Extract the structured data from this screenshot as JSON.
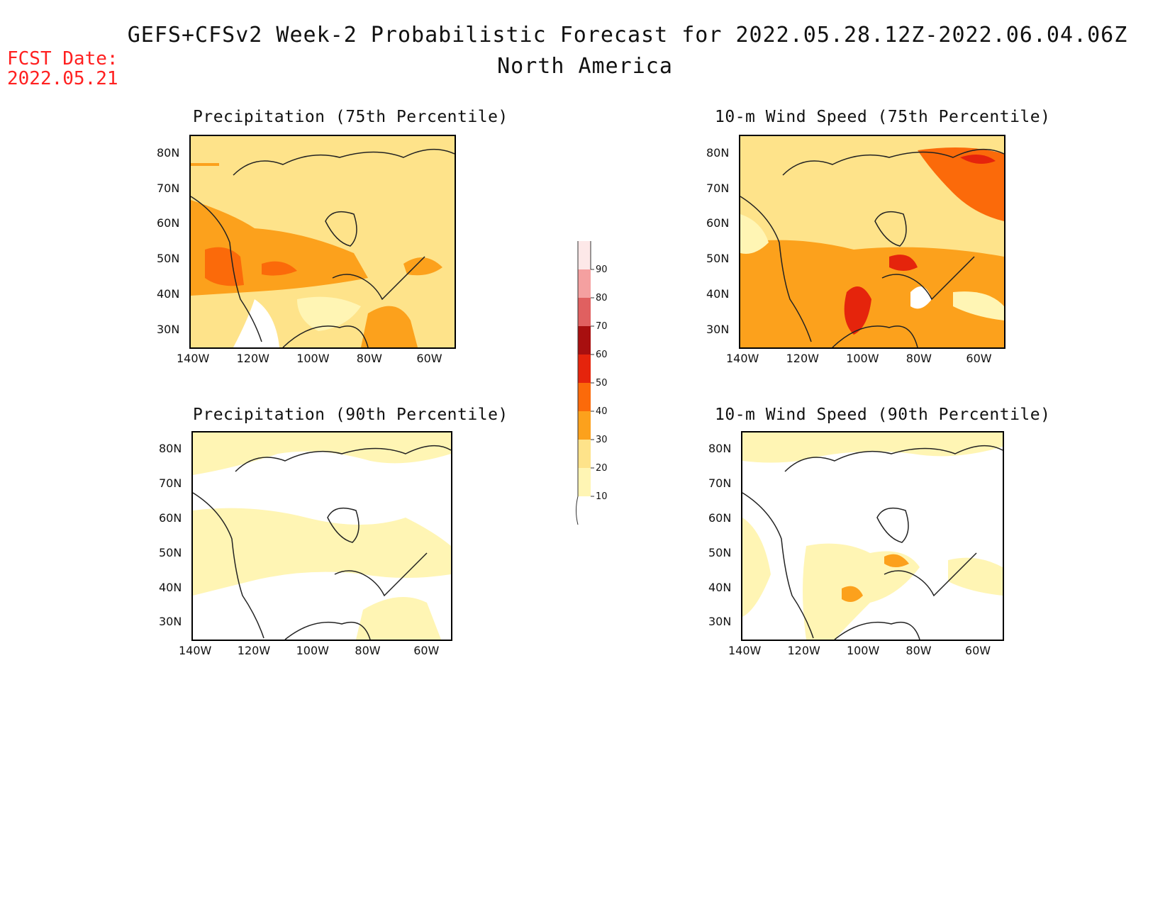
{
  "header": {
    "title": "GEFS+CFSv2 Week-2 Probabilistic Forecast for 2022.05.28.12Z-2022.06.04.06Z",
    "subtitle": "North America",
    "fcst_label": "FCST Date:",
    "fcst_date": "2022.05.21"
  },
  "axes": {
    "lat_labels": [
      "80N",
      "70N",
      "60N",
      "50N",
      "40N",
      "30N"
    ],
    "lon_labels": [
      "140W",
      "120W",
      "100W",
      "80W",
      "60W"
    ]
  },
  "panels": [
    {
      "id": "precip75",
      "title": "Precipitation (75th Percentile)"
    },
    {
      "id": "wind75",
      "title": "10-m Wind Speed (75th Percentile)"
    },
    {
      "id": "precip90",
      "title": "Precipitation (90th Percentile)"
    },
    {
      "id": "wind90",
      "title": "10-m Wind Speed (90th Percentile)"
    }
  ],
  "colorbar": {
    "levels": [
      "10",
      "20",
      "30",
      "40",
      "50",
      "60",
      "70",
      "80",
      "90"
    ],
    "colors": [
      "#fff5b4",
      "#fee38a",
      "#fca11c",
      "#fb6a0a",
      "#e5240c",
      "#a80f0f",
      "#e06060",
      "#f4a0a0",
      "#fde8e8"
    ]
  },
  "colors": {
    "fcst_red": "#ff2020",
    "level10": "#fff5b4",
    "level20": "#fee38a",
    "level30": "#fca11c",
    "level40": "#fb6a0a",
    "level50": "#e5240c",
    "level60": "#a80f0f"
  }
}
